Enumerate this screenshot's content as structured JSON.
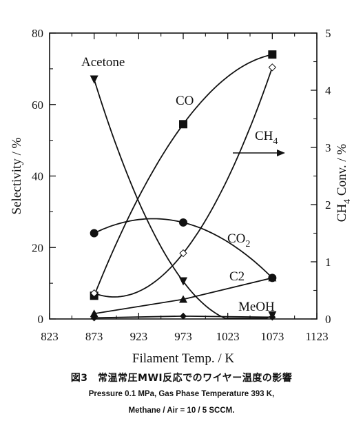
{
  "chart_data": {
    "type": "line",
    "xlabel": "Filament Temp. / K",
    "ylabel": "Selectivity / %",
    "y2label_main": "CH",
    "y2label_sub": "4",
    "y2label_rest": " Conv. / %",
    "xlim": [
      823,
      1123
    ],
    "ylim": [
      0,
      80
    ],
    "y2lim": [
      0,
      5
    ],
    "xticks": [
      "823",
      "873",
      "923",
      "973",
      "1023",
      "1073",
      "1123"
    ],
    "yticks": [
      "0",
      "20",
      "40",
      "60",
      "80"
    ],
    "y2ticks": [
      "0",
      "1",
      "2",
      "3",
      "4",
      "5"
    ],
    "x": [
      873,
      973,
      1073
    ],
    "series": [
      {
        "name": "Acetone",
        "axis": "left",
        "marker": "triangle-down",
        "values": [
          67,
          10.5,
          1
        ]
      },
      {
        "name": "CO",
        "axis": "left",
        "marker": "square",
        "values": [
          6.5,
          54.5,
          74
        ]
      },
      {
        "name": "CO",
        "name_sub": "2",
        "axis": "left",
        "marker": "circle",
        "values": [
          24,
          27,
          11.5
        ]
      },
      {
        "name": "C2",
        "axis": "left",
        "marker": "triangle-up",
        "values": [
          1.5,
          5.5,
          11.5
        ]
      },
      {
        "name": "MeOH",
        "axis": "left",
        "marker": "diamond-filled",
        "values": [
          0.3,
          0.8,
          0.5
        ]
      },
      {
        "name": "CH",
        "name_sub": "4",
        "axis": "right",
        "marker": "diamond-open",
        "values": [
          0.45,
          1.15,
          4.4
        ]
      }
    ]
  },
  "caption": {
    "title": "図3　常温常圧MWI反応でのワイヤー温度の影響",
    "line1": "Pressure 0.1 MPa, Gas Phase Temperature 393 K,",
    "line2": "Methane / Air = 10 / 5 SCCM."
  }
}
